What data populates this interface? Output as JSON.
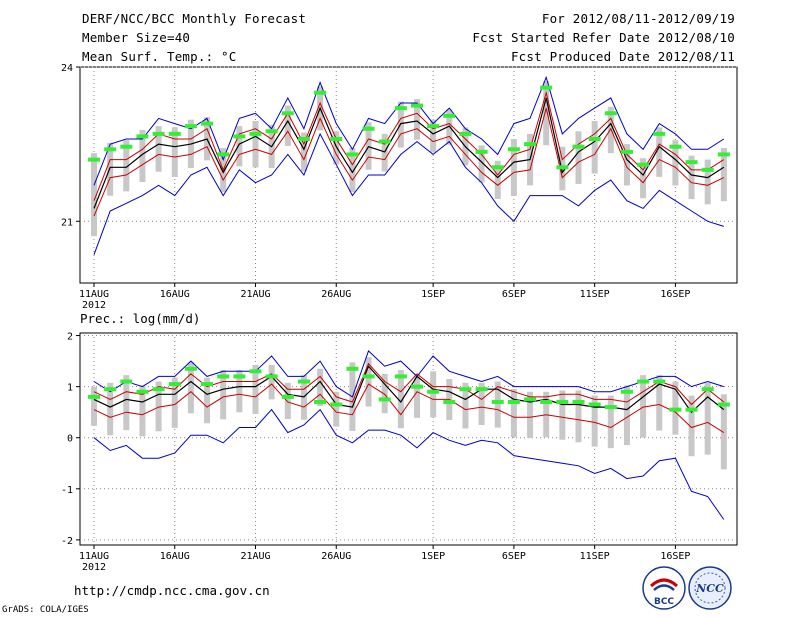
{
  "header": {
    "title": "DERF/NCC/BCC Monthly Forecast",
    "member_size": "Member Size=40",
    "variable": "Mean Surf. Temp.: °C",
    "period": "For 2012/08/11-2012/09/19",
    "started": "Fcst Started Refer Date 2012/08/10",
    "produced": "Fcst Produced Date 2012/08/11"
  },
  "footer": {
    "url": "http://cmdp.ncc.cma.gov.cn",
    "credit": "GrADS: COLA/IGES",
    "logo_left_text": "BCC",
    "logo_right_text": "NCC"
  },
  "colors": {
    "max_min": "#0000cc",
    "p90_p10": "#cc0000",
    "mean": "#000000",
    "box": "#c8c8c8",
    "ens_mean": "#33ee33",
    "grid": "#888888"
  },
  "chart_data": [
    {
      "type": "line",
      "title": "Mean Surf. Temp.: °C",
      "year_label": "2012",
      "x_tick_labels": [
        "11AUG",
        "16AUG",
        "21AUG",
        "26AUG",
        "1SEP",
        "6SEP",
        "11SEP",
        "16SEP"
      ],
      "x_tick_days": [
        0,
        5,
        10,
        15,
        21,
        26,
        31,
        36
      ],
      "ylim": [
        19.8,
        24
      ],
      "y_ticks": [
        21,
        24
      ],
      "y_tick_labels": [
        "21",
        "24"
      ],
      "days": 40,
      "series": [
        {
          "name": "max",
          "values": [
            21.7,
            22.5,
            22.6,
            22.6,
            23.0,
            22.9,
            22.8,
            23.0,
            22.2,
            23.0,
            23.1,
            22.8,
            23.4,
            22.8,
            23.7,
            22.9,
            22.4,
            23.0,
            22.9,
            23.3,
            23.3,
            22.9,
            23.2,
            22.8,
            22.6,
            22.3,
            22.9,
            23.0,
            23.8,
            22.7,
            23.0,
            23.2,
            23.4,
            22.7,
            22.4,
            22.9,
            22.7,
            22.4,
            22.4,
            22.6
          ]
        },
        {
          "name": "p90",
          "values": [
            21.4,
            22.2,
            22.2,
            22.4,
            22.7,
            22.6,
            22.6,
            22.8,
            22.0,
            22.7,
            22.8,
            22.6,
            23.1,
            22.5,
            23.3,
            22.6,
            22.1,
            22.6,
            22.5,
            23.0,
            23.1,
            22.8,
            22.9,
            22.6,
            22.3,
            21.9,
            22.3,
            22.4,
            23.5,
            22.2,
            22.5,
            22.7,
            23.0,
            22.3,
            22.0,
            22.5,
            22.3,
            22.0,
            22.0,
            22.2
          ]
        },
        {
          "name": "mean",
          "values": [
            21.25,
            22.05,
            22.05,
            22.3,
            22.5,
            22.45,
            22.5,
            22.6,
            21.95,
            22.5,
            22.65,
            22.45,
            22.95,
            22.4,
            23.2,
            22.45,
            21.95,
            22.45,
            22.35,
            22.9,
            22.95,
            22.7,
            22.85,
            22.45,
            22.15,
            21.85,
            22.15,
            22.2,
            23.4,
            21.95,
            22.35,
            22.55,
            22.9,
            22.2,
            21.9,
            22.45,
            22.2,
            21.9,
            21.85,
            22.05
          ]
        },
        {
          "name": "p10",
          "values": [
            21.1,
            21.85,
            21.9,
            22.1,
            22.3,
            22.25,
            22.3,
            22.45,
            21.8,
            22.3,
            22.4,
            22.3,
            22.75,
            22.2,
            23.0,
            22.3,
            21.8,
            22.25,
            22.2,
            22.7,
            22.8,
            22.55,
            22.65,
            22.3,
            21.95,
            21.7,
            21.95,
            22.0,
            23.2,
            21.85,
            22.15,
            22.3,
            22.8,
            22.05,
            21.75,
            22.2,
            22.05,
            21.75,
            21.7,
            21.85
          ]
        },
        {
          "name": "min",
          "values": [
            20.35,
            21.2,
            21.35,
            21.5,
            21.7,
            21.5,
            21.9,
            22.05,
            21.5,
            22.0,
            21.75,
            21.9,
            22.3,
            21.9,
            22.7,
            22.1,
            21.5,
            21.9,
            21.9,
            22.3,
            22.55,
            22.3,
            22.55,
            22.05,
            21.75,
            21.3,
            21.0,
            21.5,
            21.5,
            21.5,
            21.3,
            21.6,
            21.8,
            21.4,
            21.25,
            21.6,
            21.4,
            21.2,
            21.0,
            20.9
          ]
        },
        {
          "name": "ens_mean",
          "values": [
            22.2,
            22.4,
            22.45,
            22.65,
            22.7,
            22.7,
            22.85,
            22.9,
            22.3,
            22.65,
            22.7,
            22.75,
            23.1,
            22.6,
            23.5,
            22.6,
            22.3,
            22.8,
            22.55,
            23.2,
            23.25,
            22.85,
            23.05,
            22.7,
            22.35,
            22.05,
            22.4,
            22.5,
            23.6,
            22.05,
            22.45,
            22.6,
            23.1,
            22.35,
            22.1,
            22.7,
            22.45,
            22.15,
            22.0,
            22.3
          ]
        }
      ]
    },
    {
      "type": "line",
      "title": "Prec.: log(mm/d)",
      "year_label": "2012",
      "x_tick_labels": [
        "11AUG",
        "16AUG",
        "21AUG",
        "26AUG",
        "1SEP",
        "6SEP",
        "11SEP",
        "16SEP"
      ],
      "x_tick_days": [
        0,
        5,
        10,
        15,
        21,
        26,
        31,
        36
      ],
      "ylim": [
        -2.1,
        2.05
      ],
      "y_ticks": [
        -2,
        -1,
        0,
        1,
        2
      ],
      "y_tick_labels": [
        "-2",
        "-1",
        "0",
        "1",
        "2"
      ],
      "days": 40,
      "series": [
        {
          "name": "max",
          "values": [
            1.1,
            0.9,
            1.1,
            1.0,
            1.2,
            1.2,
            1.5,
            1.2,
            1.3,
            1.3,
            1.3,
            1.6,
            1.2,
            1.2,
            1.5,
            1.0,
            0.8,
            1.7,
            1.4,
            1.5,
            1.2,
            1.6,
            1.3,
            1.2,
            1.1,
            1.2,
            1.0,
            1.0,
            1.0,
            1.0,
            1.0,
            0.9,
            0.9,
            1.0,
            1.1,
            1.2,
            1.2,
            1.0,
            1.1,
            1.0
          ]
        },
        {
          "name": "p90",
          "values": [
            0.9,
            0.75,
            0.9,
            0.85,
            1.0,
            0.95,
            1.25,
            1.0,
            1.1,
            1.1,
            1.1,
            1.25,
            0.95,
            0.95,
            1.2,
            0.8,
            0.7,
            1.45,
            1.1,
            0.9,
            1.25,
            1.0,
            1.0,
            0.95,
            0.75,
            1.0,
            0.9,
            0.8,
            0.8,
            0.85,
            0.85,
            0.75,
            0.75,
            0.7,
            0.9,
            1.1,
            1.0,
            0.65,
            0.95,
            0.7
          ]
        },
        {
          "name": "mean",
          "values": [
            0.75,
            0.6,
            0.75,
            0.7,
            0.85,
            0.85,
            1.1,
            0.85,
            0.95,
            1.0,
            1.0,
            1.2,
            0.85,
            0.8,
            1.1,
            0.65,
            0.6,
            1.4,
            1.05,
            0.7,
            1.2,
            0.95,
            0.9,
            0.75,
            0.95,
            0.95,
            0.75,
            0.7,
            0.75,
            0.65,
            0.65,
            0.6,
            0.6,
            0.55,
            0.8,
            1.05,
            0.95,
            0.5,
            0.8,
            0.55
          ]
        },
        {
          "name": "p10",
          "values": [
            0.55,
            0.4,
            0.5,
            0.45,
            0.6,
            0.65,
            0.9,
            0.6,
            0.8,
            0.85,
            0.8,
            1.05,
            0.7,
            0.6,
            0.85,
            0.5,
            0.45,
            1.05,
            0.85,
            0.45,
            0.9,
            0.75,
            0.75,
            0.55,
            0.6,
            0.55,
            0.4,
            0.4,
            0.45,
            0.4,
            0.35,
            0.3,
            0.2,
            0.4,
            0.6,
            0.65,
            0.5,
            0.2,
            0.3,
            0.1
          ]
        },
        {
          "name": "min",
          "values": [
            0.0,
            -0.25,
            -0.15,
            -0.4,
            -0.4,
            -0.3,
            0.05,
            0.05,
            -0.1,
            0.2,
            0.2,
            0.55,
            0.1,
            0.25,
            0.55,
            0.05,
            -0.1,
            0.15,
            0.15,
            0.05,
            -0.2,
            0.1,
            -0.05,
            -0.15,
            -0.05,
            -0.1,
            -0.35,
            -0.4,
            -0.45,
            -0.5,
            -0.55,
            -0.7,
            -0.6,
            -0.8,
            -0.75,
            -0.45,
            -0.4,
            -1.05,
            -1.15,
            -1.6
          ]
        },
        {
          "name": "ens_mean",
          "values": [
            0.8,
            0.95,
            1.1,
            0.9,
            0.95,
            1.05,
            1.35,
            1.05,
            1.2,
            1.2,
            1.3,
            1.2,
            0.8,
            1.1,
            0.7,
            0.65,
            1.35,
            1.2,
            0.75,
            1.2,
            1.0,
            0.9,
            0.7,
            0.95,
            0.95,
            0.7,
            0.7,
            0.75,
            0.7,
            0.7,
            0.7,
            0.65,
            0.6,
            0.9,
            1.1,
            1.1,
            0.55,
            0.55,
            0.95,
            0.65
          ]
        }
      ]
    }
  ]
}
